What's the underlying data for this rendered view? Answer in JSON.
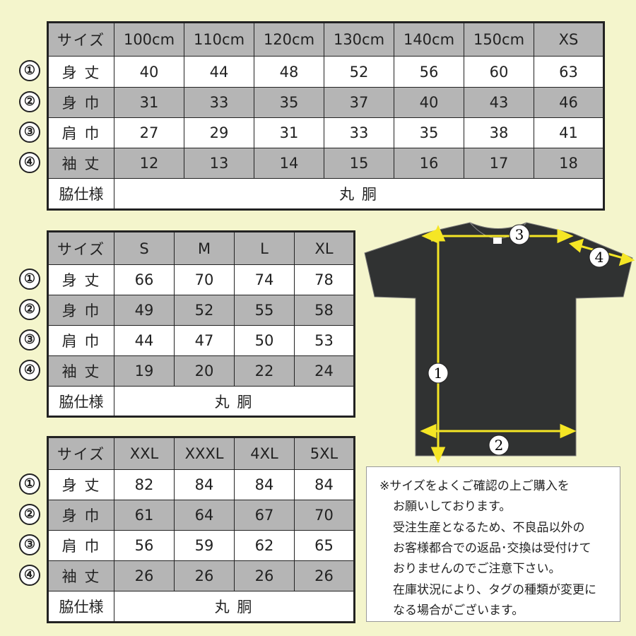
{
  "tables": [
    {
      "header": [
        "サイズ",
        "100cm",
        "110cm",
        "120cm",
        "130cm",
        "140cm",
        "150cm",
        "XS"
      ],
      "rows": [
        {
          "marker": "①",
          "label": "身 丈",
          "values": [
            "40",
            "44",
            "48",
            "52",
            "56",
            "60",
            "63"
          ]
        },
        {
          "marker": "②",
          "label": "身 巾",
          "values": [
            "31",
            "33",
            "35",
            "37",
            "40",
            "43",
            "46"
          ]
        },
        {
          "marker": "③",
          "label": "肩 巾",
          "values": [
            "27",
            "29",
            "31",
            "33",
            "35",
            "38",
            "41"
          ]
        },
        {
          "marker": "④",
          "label": "袖 丈",
          "values": [
            "12",
            "13",
            "14",
            "15",
            "16",
            "17",
            "18"
          ]
        }
      ],
      "side": {
        "label": "脇仕様",
        "value": "丸 胴"
      }
    },
    {
      "header": [
        "サイズ",
        "S",
        "M",
        "L",
        "XL"
      ],
      "rows": [
        {
          "marker": "①",
          "label": "身 丈",
          "values": [
            "66",
            "70",
            "74",
            "78"
          ]
        },
        {
          "marker": "②",
          "label": "身 巾",
          "values": [
            "49",
            "52",
            "55",
            "58"
          ]
        },
        {
          "marker": "③",
          "label": "肩 巾",
          "values": [
            "44",
            "47",
            "50",
            "53"
          ]
        },
        {
          "marker": "④",
          "label": "袖 丈",
          "values": [
            "19",
            "20",
            "22",
            "24"
          ]
        }
      ],
      "side": {
        "label": "脇仕様",
        "value": "丸 胴"
      }
    },
    {
      "header": [
        "サイズ",
        "XXL",
        "XXXL",
        "4XL",
        "5XL"
      ],
      "rows": [
        {
          "marker": "①",
          "label": "身 丈",
          "values": [
            "82",
            "84",
            "84",
            "84"
          ]
        },
        {
          "marker": "②",
          "label": "身 巾",
          "values": [
            "61",
            "64",
            "67",
            "70"
          ]
        },
        {
          "marker": "③",
          "label": "肩 巾",
          "values": [
            "56",
            "59",
            "62",
            "65"
          ]
        },
        {
          "marker": "④",
          "label": "袖 丈",
          "values": [
            "26",
            "26",
            "26",
            "26"
          ]
        }
      ],
      "side": {
        "label": "脇仕様",
        "value": "丸 胴"
      }
    }
  ],
  "diagram": {
    "markers": [
      "1",
      "2",
      "3",
      "4"
    ],
    "shirt_color": "#303232",
    "arrow_color": "#f5e625"
  },
  "note": {
    "lines": [
      "※サイズをよくご確認の上ご購入を",
      "お願いしております。",
      "受注生産となるため、不良品以外の",
      "お客様都合での返品･交換は受付けて",
      "おりませんのでご注意下さい。",
      "在庫状況により、タグの種類が変更に",
      "なる場合がございます。"
    ]
  }
}
